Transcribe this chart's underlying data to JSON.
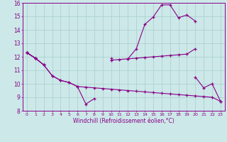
{
  "xlabel": "Windchill (Refroidissement éolien,°C)",
  "bg_color": "#cce8e8",
  "grid_color": "#aacece",
  "line_color": "#880088",
  "hours": [
    0,
    1,
    2,
    3,
    4,
    5,
    6,
    7,
    8,
    9,
    10,
    11,
    12,
    13,
    14,
    15,
    16,
    17,
    18,
    19,
    20,
    21,
    22,
    23
  ],
  "s1": [
    12.3,
    11.9,
    null,
    null,
    null,
    null,
    null,
    null,
    null,
    null,
    11.9,
    null,
    11.85,
    12.6,
    14.4,
    14.95,
    15.85,
    15.85,
    14.9,
    15.1,
    14.65,
    null,
    null,
    null
  ],
  "s2": [
    12.3,
    11.9,
    11.4,
    null,
    null,
    null,
    null,
    null,
    null,
    null,
    11.75,
    11.8,
    11.85,
    11.9,
    11.95,
    12.0,
    12.05,
    12.1,
    12.15,
    12.2,
    12.6,
    null,
    null,
    null
  ],
  "s3": [
    12.3,
    11.9,
    11.4,
    10.6,
    10.25,
    10.1,
    9.8,
    8.5,
    8.9,
    null,
    null,
    null,
    null,
    null,
    null,
    null,
    null,
    null,
    null,
    null,
    10.5,
    9.7,
    10.0,
    8.7
  ],
  "s4": [
    12.3,
    11.9,
    11.4,
    10.6,
    10.25,
    10.1,
    9.8,
    9.75,
    9.7,
    9.65,
    9.6,
    9.55,
    9.5,
    9.45,
    9.4,
    9.35,
    9.3,
    9.25,
    9.2,
    9.15,
    9.1,
    9.05,
    9.0,
    8.7
  ],
  "ylim": [
    8,
    16
  ],
  "yticks": [
    8,
    9,
    10,
    11,
    12,
    13,
    14,
    15,
    16
  ],
  "xlim": [
    -0.5,
    23.5
  ]
}
